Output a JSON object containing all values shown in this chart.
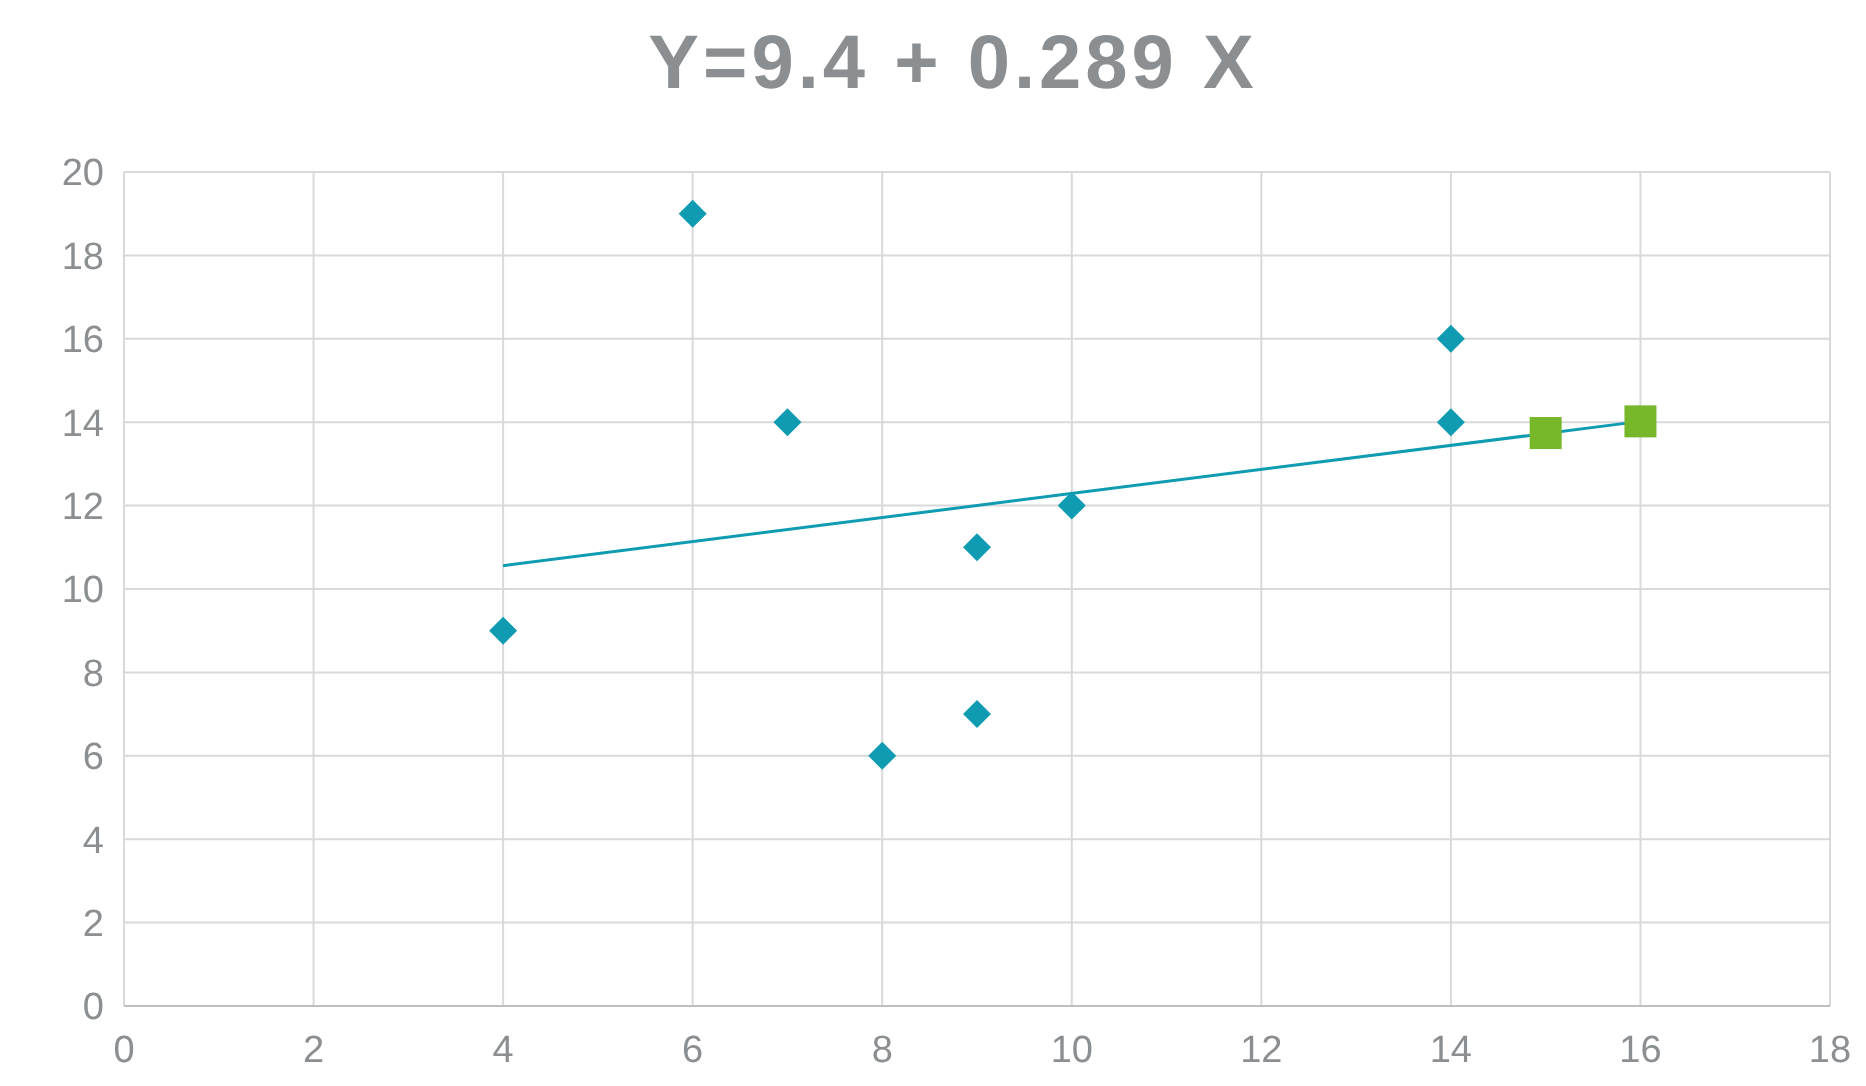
{
  "chart_data": {
    "type": "scatter",
    "title": "Y=9.4 + 0.289 X",
    "series": [
      {
        "marker": "diamond",
        "color": "#0f9bb2",
        "x": [
          4,
          6,
          7,
          8,
          9,
          9,
          10,
          14,
          14
        ],
        "values": [
          9,
          19,
          14,
          6,
          11,
          7,
          12,
          16,
          14
        ]
      },
      {
        "type": "line",
        "marker": "none",
        "color": "#0f9bb2",
        "x": [
          4,
          16
        ],
        "values": [
          10.56,
          14.02
        ]
      },
      {
        "marker": "square",
        "color": "#76b82a",
        "x": [
          15,
          16
        ],
        "values": [
          13.74,
          14.02
        ]
      }
    ],
    "xlim": [
      0,
      18
    ],
    "xticks": [
      0,
      2,
      4,
      6,
      8,
      10,
      12,
      14,
      16,
      18
    ],
    "ylim": [
      0,
      20
    ],
    "yticks": [
      0,
      2,
      4,
      6,
      8,
      10,
      12,
      14,
      16,
      18,
      20
    ],
    "grid": true
  }
}
